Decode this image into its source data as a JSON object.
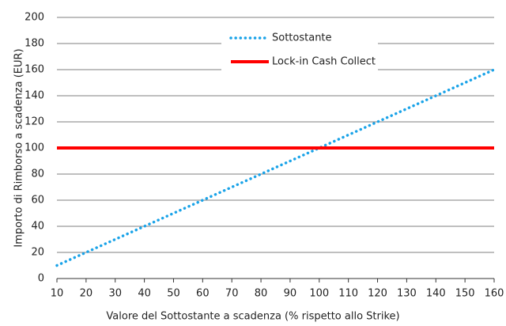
{
  "chart_data": {
    "type": "line",
    "xlabel": "Valore del Sottostante a scadenza (% rispetto allo Strike)",
    "ylabel": "Importo di Rimborso a scadenza (EUR)",
    "x": [
      10,
      20,
      30,
      40,
      50,
      60,
      70,
      80,
      90,
      100,
      110,
      120,
      130,
      140,
      150,
      160
    ],
    "series": [
      {
        "name": "Sottostante",
        "color": "#1aa3e8",
        "dash": "dotted",
        "values": [
          10,
          20,
          30,
          40,
          50,
          60,
          70,
          80,
          90,
          100,
          110,
          120,
          130,
          140,
          150,
          160
        ]
      },
      {
        "name": "Lock-in Cash Collect",
        "color": "#ff0000",
        "dash": "solid",
        "values": [
          100,
          100,
          100,
          100,
          100,
          100,
          100,
          100,
          100,
          100,
          100,
          100,
          100,
          100,
          100,
          100
        ]
      }
    ],
    "xlim": [
      10,
      160
    ],
    "xticks": [
      10,
      20,
      30,
      40,
      50,
      60,
      70,
      80,
      90,
      100,
      110,
      120,
      130,
      140,
      150,
      160
    ],
    "ylim": [
      0,
      200
    ],
    "yticks": [
      0,
      20,
      40,
      60,
      80,
      100,
      120,
      140,
      160,
      180,
      200
    ],
    "grid": true,
    "legend": "top"
  }
}
